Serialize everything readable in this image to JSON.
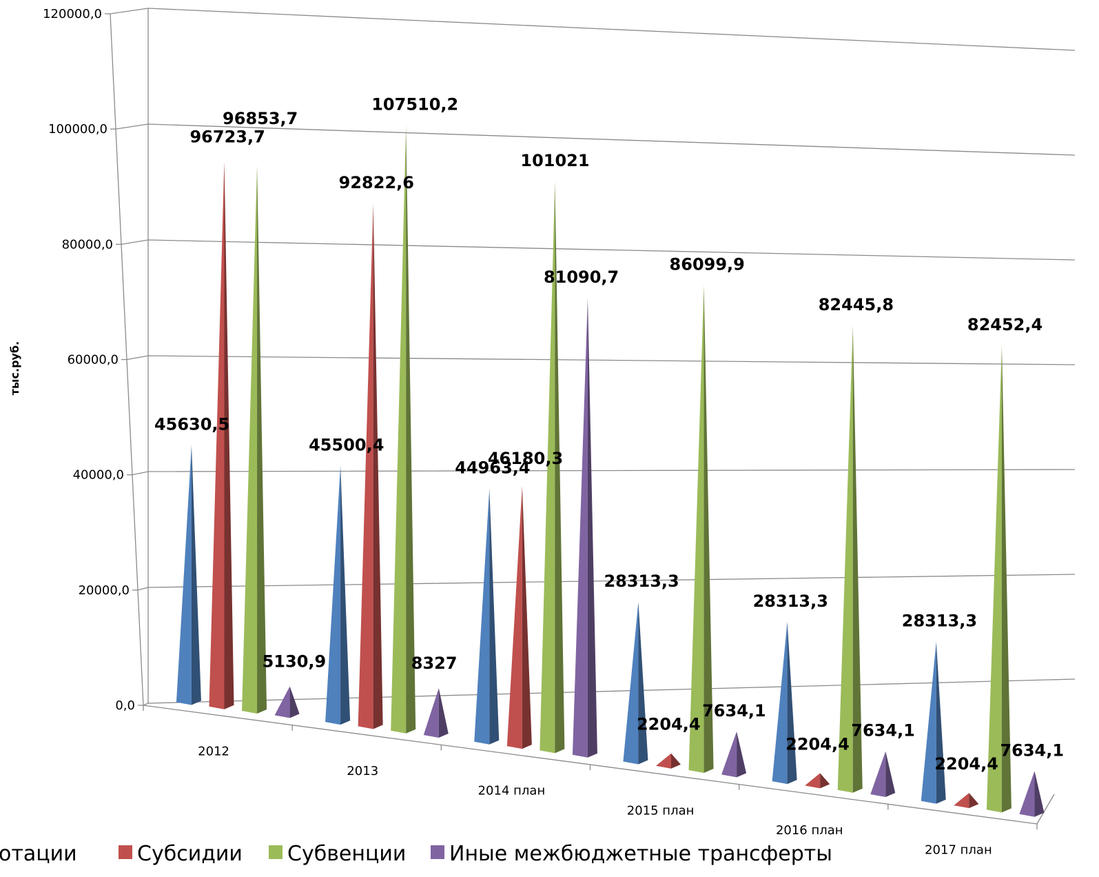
{
  "chart_data": {
    "type": "bar",
    "subtype": "3d-cone",
    "ylabel": "тыс.руб.",
    "ylim": [
      0,
      120000
    ],
    "y_ticks": [
      "0,0",
      "20000,0",
      "40000,0",
      "60000,0",
      "80000,0",
      "100000,0",
      "120000,0"
    ],
    "y_tick_values": [
      0,
      20000,
      40000,
      60000,
      80000,
      100000,
      120000
    ],
    "grid": true,
    "legend_position": "bottom",
    "categories": [
      "2012",
      "2013",
      "2014 план",
      "2015 план",
      "2016 план",
      "2017 план"
    ],
    "series": [
      {
        "name": "Дотации",
        "color": "#4f81bd",
        "values": [
          45630.5,
          45500.4,
          44963.4,
          28313.3,
          28313.3,
          28313.3
        ],
        "labels": [
          "45630,5",
          "45500,4",
          "44963,4",
          "28313,3",
          "28313,3",
          "28313,3"
        ]
      },
      {
        "name": "Субсидии",
        "color": "#c0504d",
        "values": [
          96723.7,
          92822.6,
          46180.3,
          2204.4,
          2204.4,
          2204.4
        ],
        "labels": [
          "96723,7",
          "92822,6",
          "46180,3",
          "2204,4",
          "2204,4",
          "2204,4"
        ]
      },
      {
        "name": "Субвенции",
        "color": "#9bbb59",
        "values": [
          96853.7,
          107510.2,
          101021,
          86099.9,
          82445.8,
          82452.4
        ],
        "labels": [
          "96853,7",
          "107510,2",
          "101021",
          "86099,9",
          "82445,8",
          "82452,4"
        ]
      },
      {
        "name": "Иные межбюджетные трансферты",
        "color": "#8064a2",
        "values": [
          5130.9,
          8327,
          81090.7,
          7634.1,
          7634.1,
          7634.1
        ],
        "labels": [
          "5130,9",
          "8327",
          "81090,7",
          "7634,1",
          "7634,1",
          "7634,1"
        ]
      }
    ],
    "legend": [
      "отации",
      "Субсидии",
      "Субвенции",
      "Иные межбюджетные трансферты"
    ]
  }
}
